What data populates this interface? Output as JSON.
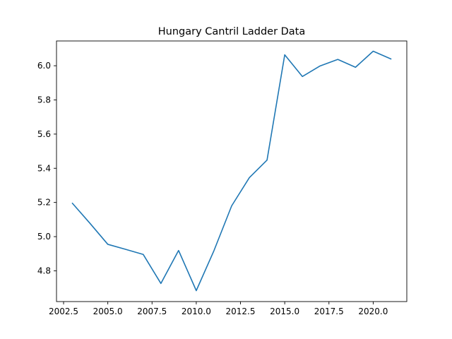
{
  "chart_data": {
    "type": "line",
    "title": "Hungary Cantril Ladder Data",
    "xlabel": "",
    "ylabel": "",
    "xlim": [
      2002.1,
      2021.9
    ],
    "ylim": [
      4.62,
      6.145
    ],
    "x_ticks": [
      2002.5,
      2005.0,
      2007.5,
      2010.0,
      2012.5,
      2015.0,
      2017.5,
      2020.0
    ],
    "x_tick_labels": [
      "2002.5",
      "2005.0",
      "2007.5",
      "2010.0",
      "2012.5",
      "2015.0",
      "2017.5",
      "2020.0"
    ],
    "y_ticks": [
      4.8,
      5.0,
      5.2,
      5.4,
      5.6,
      5.8,
      6.0
    ],
    "y_tick_labels": [
      "4.8",
      "5.0",
      "5.2",
      "5.4",
      "5.6",
      "5.8",
      "6.0"
    ],
    "grid": false,
    "series": [
      {
        "color": "#1f77b4",
        "x": [
          2003,
          2004,
          2005,
          2006,
          2007,
          2008,
          2009,
          2010,
          2011,
          2012,
          2013,
          2014,
          2015,
          2016,
          2017,
          2018,
          2019,
          2020,
          2021
        ],
        "y": [
          5.195,
          5.077,
          4.955,
          4.926,
          4.896,
          4.726,
          4.919,
          4.684,
          4.918,
          5.18,
          5.345,
          5.448,
          6.064,
          5.937,
          5.999,
          6.037,
          5.991,
          6.085,
          6.04
        ]
      }
    ]
  }
}
